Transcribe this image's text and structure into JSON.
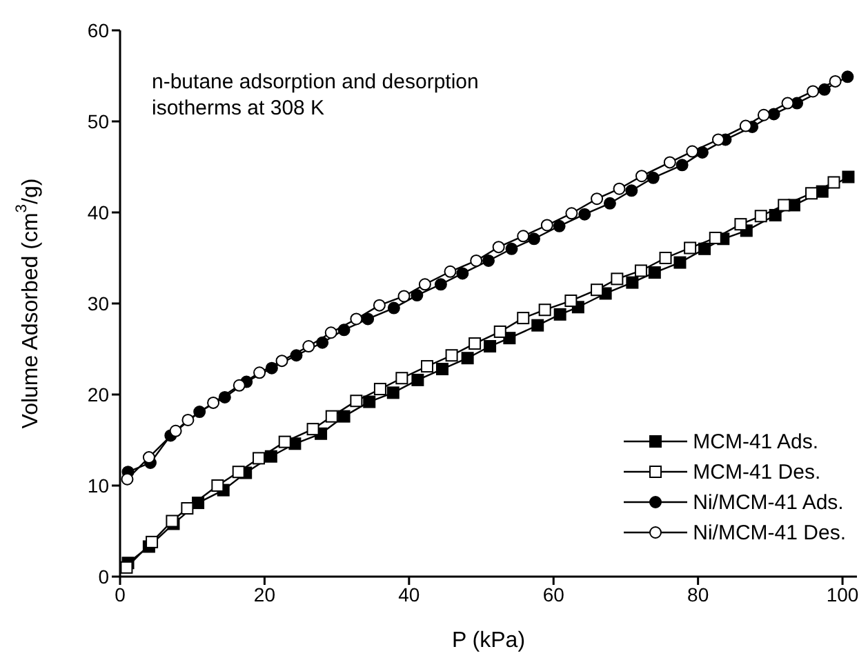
{
  "chart_data": {
    "type": "line",
    "xlabel": "P (kPa)",
    "ylabel": "Volume Adsorbed (cm$^{3}$/g)",
    "annotations": [
      "n-butane adsorption and desorption isotherms at 308 K"
    ],
    "xlim": [
      0,
      102
    ],
    "xticks": [
      0,
      20,
      40,
      60,
      80,
      100
    ],
    "ylim": [
      0,
      60
    ],
    "yticks": [
      0,
      10,
      20,
      30,
      40,
      50,
      60
    ],
    "grid": false,
    "legend": "bottom right",
    "line_style": "solid",
    "series": [
      {
        "name": "MCM-41 Ads.",
        "color": "#000000",
        "marker": "square",
        "x": [
          1.1,
          4.0,
          7.4,
          10.8,
          14.3,
          17.4,
          20.9,
          24.2,
          27.8,
          31.0,
          34.5,
          37.8,
          41.2,
          44.6,
          48.1,
          51.2,
          53.9,
          57.8,
          60.9,
          63.4,
          67.2,
          70.9,
          74.0,
          77.5,
          80.9,
          83.5,
          86.7,
          90.7,
          93.3,
          97.2,
          100.8
        ],
        "values": [
          1.5,
          3.3,
          5.8,
          8.1,
          9.5,
          11.4,
          13.2,
          14.6,
          15.7,
          17.6,
          19.2,
          20.2,
          21.6,
          22.8,
          24.0,
          25.3,
          26.2,
          27.6,
          28.8,
          29.6,
          31.1,
          32.3,
          33.4,
          34.5,
          36.0,
          37.1,
          38.0,
          39.7,
          40.8,
          42.3,
          43.9
        ]
      },
      {
        "name": "MCM-41 Des.",
        "color": "#000000",
        "marker": "square-open",
        "x": [
          0.9,
          4.4,
          7.2,
          9.3,
          13.5,
          16.4,
          19.2,
          22.8,
          26.7,
          29.3,
          32.7,
          36.0,
          39.0,
          42.5,
          45.9,
          49.1,
          52.6,
          55.8,
          58.8,
          62.4,
          66.0,
          68.8,
          72.1,
          75.5,
          78.9,
          82.4,
          85.9,
          88.7,
          91.9,
          95.7,
          98.8
        ],
        "values": [
          1.0,
          3.8,
          6.1,
          7.5,
          10.0,
          11.5,
          13.0,
          14.8,
          16.2,
          17.6,
          19.3,
          20.6,
          21.8,
          23.1,
          24.3,
          25.6,
          26.9,
          28.4,
          29.3,
          30.3,
          31.5,
          32.7,
          33.6,
          35.0,
          36.1,
          37.2,
          38.7,
          39.6,
          40.8,
          42.1,
          43.3
        ]
      },
      {
        "name": "Ni/MCM-41 Ads.",
        "color": "#000000",
        "marker": "circle",
        "x": [
          1.1,
          4.2,
          7.0,
          11.0,
          14.5,
          17.5,
          21.0,
          24.4,
          28.0,
          31.0,
          34.3,
          37.9,
          41.1,
          44.4,
          47.4,
          51.0,
          54.2,
          57.3,
          60.8,
          64.3,
          67.8,
          70.8,
          73.8,
          77.8,
          80.6,
          83.8,
          87.5,
          90.5,
          93.7,
          97.5,
          100.7
        ],
        "values": [
          11.5,
          12.5,
          15.5,
          18.1,
          19.7,
          21.4,
          22.9,
          24.3,
          25.7,
          27.1,
          28.3,
          29.5,
          30.9,
          32.1,
          33.3,
          34.7,
          36.0,
          37.1,
          38.5,
          39.8,
          41.0,
          42.4,
          43.8,
          45.2,
          46.6,
          48.0,
          49.4,
          50.8,
          52.0,
          53.5,
          54.9
        ]
      },
      {
        "name": "Ni/MCM-41 Des.",
        "color": "#000000",
        "marker": "circle-open",
        "x": [
          1.0,
          4.0,
          7.7,
          9.4,
          12.9,
          16.5,
          19.3,
          22.4,
          26.1,
          29.2,
          32.7,
          35.9,
          39.3,
          42.2,
          45.7,
          49.3,
          52.4,
          55.8,
          59.1,
          62.5,
          66.0,
          69.1,
          72.2,
          76.1,
          79.2,
          82.8,
          86.6,
          89.1,
          92.4,
          95.9,
          99.0
        ],
        "values": [
          10.7,
          13.1,
          16.0,
          17.2,
          19.1,
          21.0,
          22.4,
          23.7,
          25.3,
          26.8,
          28.3,
          29.8,
          30.8,
          32.1,
          33.5,
          34.7,
          36.2,
          37.4,
          38.6,
          39.9,
          41.5,
          42.6,
          44.0,
          45.5,
          46.7,
          48.0,
          49.5,
          50.7,
          52.0,
          53.3,
          54.4
        ]
      }
    ]
  }
}
